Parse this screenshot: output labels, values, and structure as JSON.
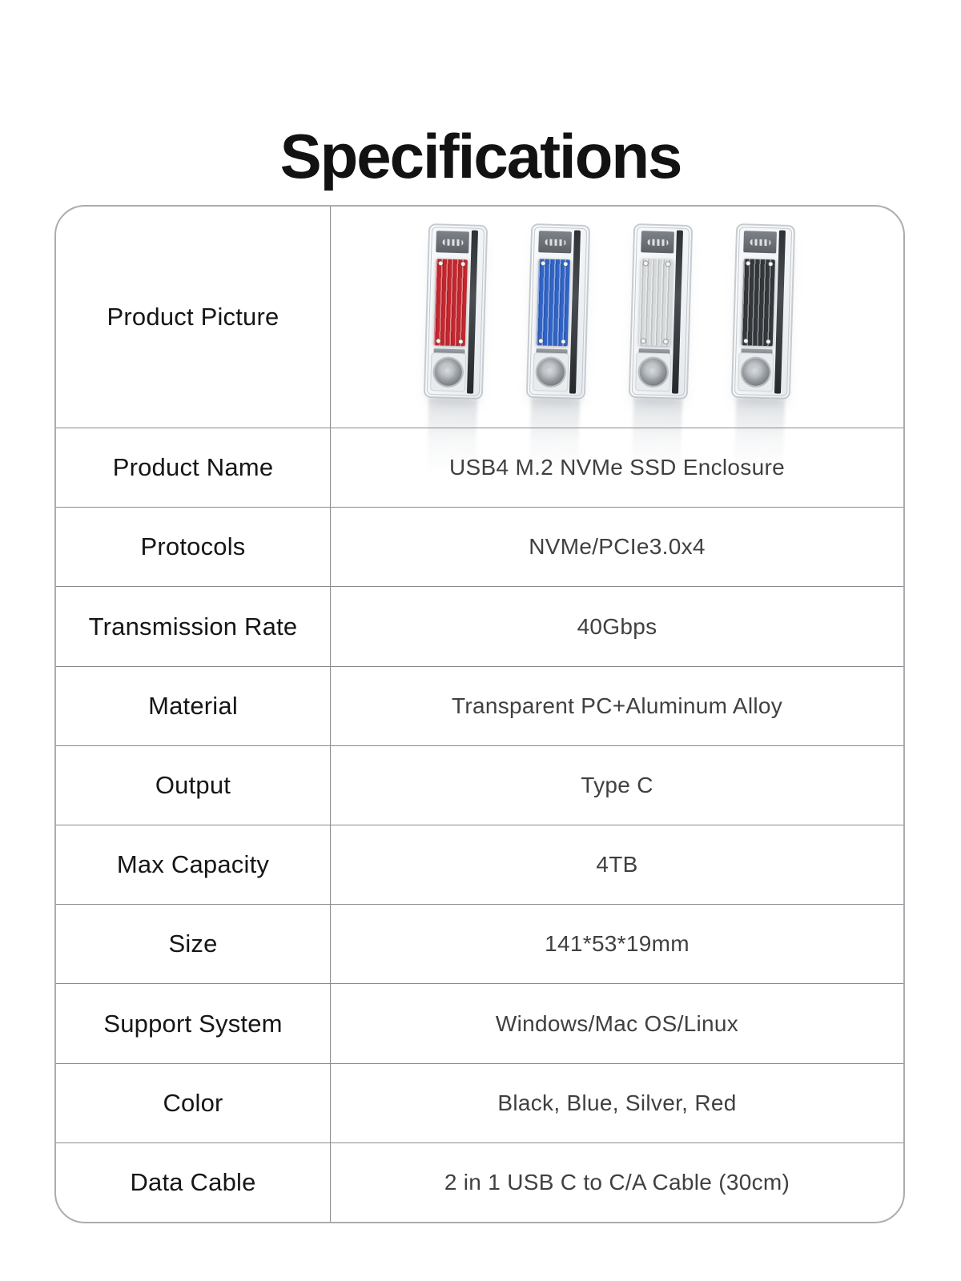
{
  "page": {
    "title": "Specifications"
  },
  "picture_row": {
    "label": "Product Picture"
  },
  "products": [
    {
      "name": "red",
      "hex": "#c5272e"
    },
    {
      "name": "blue",
      "hex": "#3164c7"
    },
    {
      "name": "silver",
      "hex": "#d7dadc"
    },
    {
      "name": "black",
      "hex": "#34373b"
    }
  ],
  "spec_rows": [
    {
      "label": "Product Name",
      "value": "USB4 M.2 NVMe SSD Enclosure"
    },
    {
      "label": "Protocols",
      "value": "NVMe/PCIe3.0x4"
    },
    {
      "label": "Transmission Rate",
      "value": "40Gbps"
    },
    {
      "label": "Material",
      "value": "Transparent PC+Aluminum Alloy"
    },
    {
      "label": "Output",
      "value": "Type C"
    },
    {
      "label": "Max Capacity",
      "value": "4TB"
    },
    {
      "label": "Size",
      "value": "141*53*19mm"
    },
    {
      "label": "Support System",
      "value": "Windows/Mac OS/Linux"
    },
    {
      "label": "Color",
      "value": "Black, Blue, Silver, Red"
    },
    {
      "label": "Data Cable",
      "value": "2 in 1 USB C to C/A Cable (30cm)"
    }
  ]
}
